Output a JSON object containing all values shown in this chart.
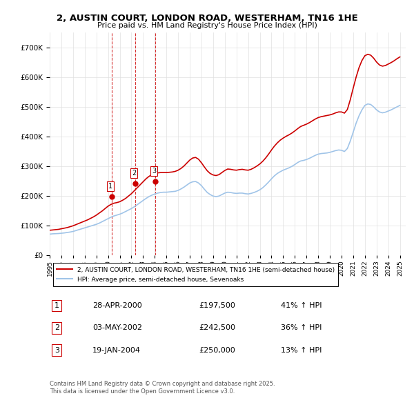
{
  "title": "2, AUSTIN COURT, LONDON ROAD, WESTERHAM, TN16 1HE",
  "subtitle": "Price paid vs. HM Land Registry's House Price Index (HPI)",
  "legend_entry1": "2, AUSTIN COURT, LONDON ROAD, WESTERHAM, TN16 1HE (semi-detached house)",
  "legend_entry2": "HPI: Average price, semi-detached house, Sevenoaks",
  "footer": "Contains HM Land Registry data © Crown copyright and database right 2025.\nThis data is licensed under the Open Government Licence v3.0.",
  "transactions": [
    {
      "num": 1,
      "date": "28-APR-2000",
      "price": 197500,
      "year": 2000.32,
      "hpi_pct": "41% ↑ HPI"
    },
    {
      "num": 2,
      "date": "03-MAY-2002",
      "price": 242500,
      "year": 2002.34,
      "hpi_pct": "36% ↑ HPI"
    },
    {
      "num": 3,
      "date": "19-JAN-2004",
      "price": 250000,
      "year": 2004.05,
      "hpi_pct": "13% ↑ HPI"
    }
  ],
  "hpi_color": "#a0c4e8",
  "price_color": "#cc0000",
  "marker_color": "#cc0000",
  "vline_color": "#cc0000",
  "ylim": [
    0,
    750000
  ],
  "yticks": [
    0,
    100000,
    200000,
    300000,
    400000,
    500000,
    600000,
    700000
  ],
  "xlim_start": 1995.0,
  "xlim_end": 2025.5,
  "background_color": "#ffffff",
  "grid_color": "#e0e0e0",
  "hpi_data_years": [
    1995.0,
    1995.25,
    1995.5,
    1995.75,
    1996.0,
    1996.25,
    1996.5,
    1996.75,
    1997.0,
    1997.25,
    1997.5,
    1997.75,
    1998.0,
    1998.25,
    1998.5,
    1998.75,
    1999.0,
    1999.25,
    1999.5,
    1999.75,
    2000.0,
    2000.25,
    2000.5,
    2000.75,
    2001.0,
    2001.25,
    2001.5,
    2001.75,
    2002.0,
    2002.25,
    2002.5,
    2002.75,
    2003.0,
    2003.25,
    2003.5,
    2003.75,
    2004.0,
    2004.25,
    2004.5,
    2004.75,
    2005.0,
    2005.25,
    2005.5,
    2005.75,
    2006.0,
    2006.25,
    2006.5,
    2006.75,
    2007.0,
    2007.25,
    2007.5,
    2007.75,
    2008.0,
    2008.25,
    2008.5,
    2008.75,
    2009.0,
    2009.25,
    2009.5,
    2009.75,
    2010.0,
    2010.25,
    2010.5,
    2010.75,
    2011.0,
    2011.25,
    2011.5,
    2011.75,
    2012.0,
    2012.25,
    2012.5,
    2012.75,
    2013.0,
    2013.25,
    2013.5,
    2013.75,
    2014.0,
    2014.25,
    2014.5,
    2014.75,
    2015.0,
    2015.25,
    2015.5,
    2015.75,
    2016.0,
    2016.25,
    2016.5,
    2016.75,
    2017.0,
    2017.25,
    2017.5,
    2017.75,
    2018.0,
    2018.25,
    2018.5,
    2018.75,
    2019.0,
    2019.25,
    2019.5,
    2019.75,
    2020.0,
    2020.25,
    2020.5,
    2020.75,
    2021.0,
    2021.25,
    2021.5,
    2021.75,
    2022.0,
    2022.25,
    2022.5,
    2022.75,
    2023.0,
    2023.25,
    2023.5,
    2023.75,
    2024.0,
    2024.25,
    2024.5,
    2024.75,
    2025.0
  ],
  "hpi_data_values": [
    72000,
    73000,
    73500,
    74000,
    75000,
    76000,
    77500,
    79000,
    81000,
    84000,
    87000,
    90000,
    93000,
    96000,
    99000,
    102000,
    105000,
    109000,
    114000,
    119000,
    124000,
    129000,
    133000,
    136000,
    139000,
    143000,
    148000,
    153000,
    158000,
    164000,
    171000,
    178000,
    185000,
    192000,
    198000,
    203000,
    207000,
    210000,
    212000,
    213000,
    213000,
    214000,
    215000,
    216000,
    219000,
    224000,
    230000,
    237000,
    244000,
    248000,
    249000,
    244000,
    235000,
    223000,
    212000,
    205000,
    200000,
    198000,
    200000,
    205000,
    210000,
    213000,
    212000,
    210000,
    209000,
    210000,
    210000,
    208000,
    207000,
    209000,
    212000,
    216000,
    221000,
    228000,
    237000,
    247000,
    258000,
    268000,
    276000,
    282000,
    287000,
    291000,
    295000,
    300000,
    306000,
    313000,
    318000,
    320000,
    323000,
    327000,
    332000,
    337000,
    341000,
    343000,
    344000,
    345000,
    347000,
    350000,
    353000,
    355000,
    354000,
    350000,
    360000,
    385000,
    415000,
    445000,
    470000,
    490000,
    505000,
    510000,
    508000,
    500000,
    490000,
    483000,
    480000,
    482000,
    486000,
    490000,
    495000,
    500000,
    505000
  ],
  "price_data_years": [
    1995.0,
    1995.25,
    1995.5,
    1995.75,
    1996.0,
    1996.25,
    1996.5,
    1996.75,
    1997.0,
    1997.25,
    1997.5,
    1997.75,
    1998.0,
    1998.25,
    1998.5,
    1998.75,
    1999.0,
    1999.25,
    1999.5,
    1999.75,
    2000.0,
    2000.25,
    2000.5,
    2000.75,
    2001.0,
    2001.25,
    2001.5,
    2001.75,
    2002.0,
    2002.25,
    2002.5,
    2002.75,
    2003.0,
    2003.25,
    2003.5,
    2003.75,
    2004.0,
    2004.25,
    2004.5,
    2004.75,
    2005.0,
    2005.25,
    2005.5,
    2005.75,
    2006.0,
    2006.25,
    2006.5,
    2006.75,
    2007.0,
    2007.25,
    2007.5,
    2007.75,
    2008.0,
    2008.25,
    2008.5,
    2008.75,
    2009.0,
    2009.25,
    2009.5,
    2009.75,
    2010.0,
    2010.25,
    2010.5,
    2010.75,
    2011.0,
    2011.25,
    2011.5,
    2011.75,
    2012.0,
    2012.25,
    2012.5,
    2012.75,
    2013.0,
    2013.25,
    2013.5,
    2013.75,
    2014.0,
    2014.25,
    2014.5,
    2014.75,
    2015.0,
    2015.25,
    2015.5,
    2015.75,
    2016.0,
    2016.25,
    2016.5,
    2016.75,
    2017.0,
    2017.25,
    2017.5,
    2017.75,
    2018.0,
    2018.25,
    2018.5,
    2018.75,
    2019.0,
    2019.25,
    2019.5,
    2019.75,
    2020.0,
    2020.25,
    2020.5,
    2020.75,
    2021.0,
    2021.25,
    2021.5,
    2021.75,
    2022.0,
    2022.25,
    2022.5,
    2022.75,
    2023.0,
    2023.25,
    2023.5,
    2023.75,
    2024.0,
    2024.25,
    2024.5,
    2024.75,
    2025.0
  ],
  "price_data_values": [
    85000,
    86000,
    87000,
    88000,
    90000,
    92000,
    94000,
    97000,
    100000,
    104000,
    108000,
    112000,
    116000,
    120000,
    125000,
    130000,
    136000,
    143000,
    150000,
    158000,
    166000,
    172000,
    176000,
    178000,
    181000,
    186000,
    192000,
    200000,
    208000,
    218000,
    228000,
    238000,
    248000,
    258000,
    266000,
    272000,
    276000,
    278000,
    279000,
    279000,
    279000,
    280000,
    281000,
    283000,
    287000,
    293000,
    301000,
    311000,
    321000,
    328000,
    330000,
    324000,
    312000,
    298000,
    285000,
    276000,
    271000,
    269000,
    272000,
    279000,
    286000,
    291000,
    290000,
    288000,
    287000,
    289000,
    290000,
    288000,
    287000,
    290000,
    295000,
    301000,
    308000,
    317000,
    328000,
    341000,
    355000,
    368000,
    379000,
    388000,
    395000,
    401000,
    406000,
    412000,
    419000,
    427000,
    434000,
    438000,
    442000,
    447000,
    453000,
    459000,
    464000,
    467000,
    469000,
    471000,
    473000,
    476000,
    480000,
    483000,
    483000,
    479000,
    491000,
    524000,
    563000,
    600000,
    632000,
    656000,
    672000,
    677000,
    674000,
    664000,
    651000,
    641000,
    637000,
    639000,
    644000,
    649000,
    655000,
    662000,
    668000
  ]
}
